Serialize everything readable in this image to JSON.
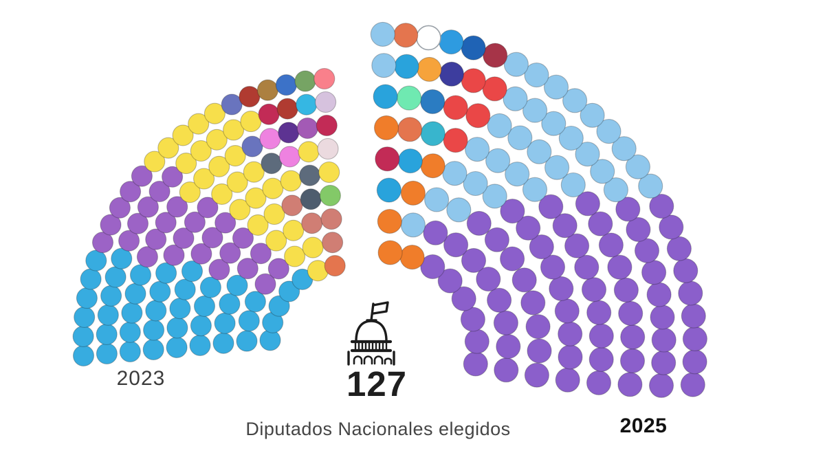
{
  "title": {
    "number": "127",
    "subtitle": "Diputados Nacionales elegidos"
  },
  "labels": {
    "left_year": "2023",
    "right_year": "2025"
  },
  "icons": {
    "center": "capitol-building-with-flag"
  },
  "chart_data": {
    "type": "parliament-dots",
    "title": "127 Diputados Nacionales elegidos",
    "total_seats_per_fan": 127,
    "layout": "two quarter-circle hemicycles facing a central gap; left fan = 2023, right fan = 2025; seats drawn as colored dots in concentric rings",
    "palette": {
      "C": "#37ACE0",
      "P": "#9C63C6",
      "Y": "#F7DF4B",
      "CO": "#E4754E",
      "RO": "#D07E74",
      "DS": "#4E5D6E",
      "LG": "#83C968",
      "GY": "#5D6B7C",
      "OC": "#EE82E0",
      "PP": "#EBDADF",
      "SB": "#6974BE",
      "DP": "#5D3392",
      "MP": "#A35AB5",
      "CR": "#C22B56",
      "DR": "#B03B31",
      "C2": "#35B7E3",
      "LV": "#D6C2DE",
      "BR": "#AC8040",
      "BL": "#3C72C8",
      "GR": "#76A464",
      "SA": "#F9808B",
      "P2": "#8B5FCB",
      "S": "#8FC7EC",
      "OR": "#F07D2A",
      "CE": "#29A3DC",
      "RD": "#EA4747",
      "TQ": "#38B5CD",
      "ST": "#2B7CC2",
      "MI": "#6FE9B1",
      "IN": "#3D3D9E",
      "AM": "#F6A33B",
      "MA": "#A63448",
      "DB": "#1F63B5",
      "MB": "#2E9BE0",
      "WH": "#FFFFFF"
    },
    "fans": [
      {
        "year": "2023",
        "side": "left",
        "estimated_party_counts": {
          "light_blue": 43,
          "purple": 28,
          "yellow": 30,
          "other_small_parties": 26
        },
        "rings": [
          [
            "C",
            "C",
            "C",
            "C",
            "C",
            "Y",
            "CO"
          ],
          [
            "C",
            "C",
            "C",
            "P",
            "P",
            "Y",
            "Y",
            "RO"
          ],
          [
            "C",
            "C",
            "C",
            "C",
            "P",
            "P",
            "Y",
            "Y",
            "RO",
            "RO"
          ],
          [
            "C",
            "C",
            "C",
            "C",
            "P",
            "P",
            "P",
            "Y",
            "Y",
            "RO",
            "DS",
            "LG"
          ],
          [
            "C",
            "C",
            "C",
            "C",
            "C",
            "P",
            "P",
            "P",
            "Y",
            "Y",
            "Y",
            "Y",
            "GY",
            "Y"
          ],
          [
            "C",
            "C",
            "C",
            "C",
            "C",
            "P",
            "P",
            "P",
            "P",
            "Y",
            "Y",
            "Y",
            "GY",
            "OC",
            "Y",
            "PP"
          ],
          [
            "C",
            "C",
            "C",
            "C",
            "C",
            "P",
            "P",
            "P",
            "P",
            "Y",
            "Y",
            "Y",
            "Y",
            "SB",
            "OC",
            "DP",
            "MP",
            "CR"
          ],
          [
            "C",
            "C",
            "C",
            "C",
            "C",
            "C",
            "P",
            "P",
            "P",
            "P",
            "P",
            "Y",
            "Y",
            "Y",
            "Y",
            "Y",
            "CR",
            "DR",
            "C2",
            "LV"
          ],
          [
            "C",
            "C",
            "C",
            "C",
            "C",
            "C",
            "P",
            "P",
            "P",
            "P",
            "P",
            "Y",
            "Y",
            "Y",
            "Y",
            "Y",
            "SB",
            "DR",
            "BR",
            "BL",
            "GR",
            "SA"
          ]
        ]
      },
      {
        "year": "2025",
        "side": "right",
        "estimated_party_counts": {
          "purple": 67,
          "light_blue": 33,
          "other_small_parties": 27
        },
        "rings": [
          [
            "P2",
            "P2",
            "P2",
            "P2",
            "P2",
            "P2",
            "OR",
            "OR"
          ],
          [
            "P2",
            "P2",
            "P2",
            "P2",
            "P2",
            "P2",
            "P2",
            "P2",
            "S",
            "OR"
          ],
          [
            "P2",
            "P2",
            "P2",
            "P2",
            "P2",
            "P2",
            "P2",
            "P2",
            "S",
            "S",
            "OR",
            "CE"
          ],
          [
            "P2",
            "P2",
            "P2",
            "P2",
            "P2",
            "P2",
            "P2",
            "P2",
            "P2",
            "S",
            "S",
            "S",
            "OR",
            "CE",
            "CR"
          ],
          [
            "P2",
            "P2",
            "P2",
            "P2",
            "P2",
            "P2",
            "P2",
            "P2",
            "P2",
            "S",
            "S",
            "S",
            "S",
            "RD",
            "TQ",
            "CO",
            "OR"
          ],
          [
            "P2",
            "P2",
            "P2",
            "P2",
            "P2",
            "P2",
            "P2",
            "P2",
            "P2",
            "S",
            "S",
            "S",
            "S",
            "S",
            "RD",
            "RD",
            "ST",
            "MI",
            "CE"
          ],
          [
            "P2",
            "P2",
            "P2",
            "P2",
            "P2",
            "P2",
            "P2",
            "P2",
            "P2",
            "S",
            "S",
            "S",
            "S",
            "S",
            "S",
            "S",
            "RD",
            "RD",
            "IN",
            "AM",
            "CE",
            "S"
          ],
          [
            "P2",
            "P2",
            "P2",
            "P2",
            "P2",
            "P2",
            "P2",
            "P2",
            "P2",
            "S",
            "S",
            "S",
            "S",
            "S",
            "S",
            "S",
            "S",
            "S",
            "MA",
            "DB",
            "MB",
            "WH",
            "CO",
            "S"
          ]
        ]
      }
    ]
  }
}
